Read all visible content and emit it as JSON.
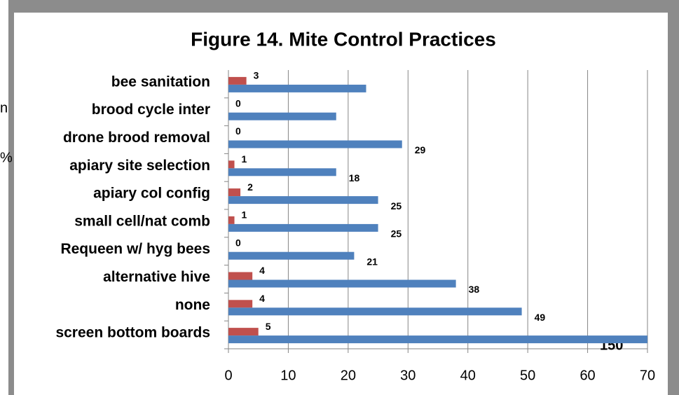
{
  "chart_data": {
    "type": "hbar",
    "title": "Figure 14. Mite Control Practices",
    "categories": [
      "screen bottom boards",
      "none",
      "alternative hive",
      "Requeen w/ hyg bees",
      "small cell/nat comb",
      "apiary col config",
      "apiary site selection",
      "drone brood removal",
      "brood cycle inter",
      "bee sanitation"
    ],
    "series": [
      {
        "color": "#c0504d",
        "values": [
          5,
          4,
          4,
          0,
          1,
          2,
          1,
          0,
          0,
          3
        ]
      },
      {
        "color": "#4f81bd",
        "values": [
          150,
          49,
          38,
          21,
          25,
          25,
          18,
          29,
          18,
          23
        ],
        "value_labels": [
          "150",
          "49",
          "38",
          "21",
          "25",
          "25",
          "18",
          "29",
          null,
          null
        ]
      }
    ],
    "xlim": [
      0,
      70
    ],
    "xticks": [
      0,
      10,
      20,
      30,
      40,
      50,
      60,
      70
    ],
    "grid": true,
    "fragments": [
      "n",
      "%"
    ]
  }
}
